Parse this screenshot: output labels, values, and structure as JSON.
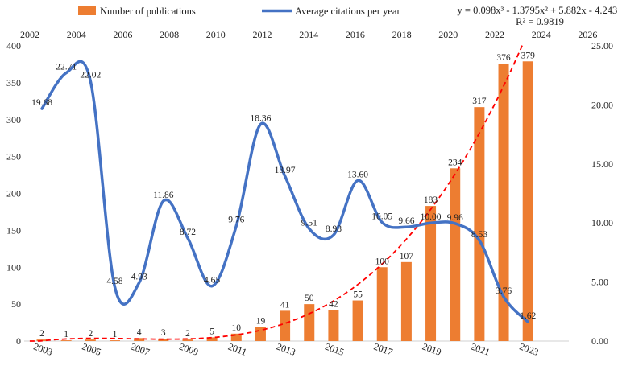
{
  "chart_data": {
    "type": "bar+line",
    "title": "",
    "colors": {
      "bar": "#ED7D31",
      "line": "#4472C4",
      "trend": "#FF0000"
    },
    "legend": {
      "bar_label": "Number of publications",
      "line_label": "Average citations per year"
    },
    "trendline": {
      "equation": "y = 0.098x³ - 1.3795x² + 5.882x - 4.2431",
      "r_squared": "R² = 0.9819",
      "coefficients": [
        0.098,
        -1.3795,
        5.882,
        -4.2431
      ]
    },
    "categories": [
      "2003",
      "2004",
      "2005",
      "2006",
      "2007",
      "2008",
      "2009",
      "2010",
      "2011",
      "2012",
      "2013",
      "2014",
      "2015",
      "2016",
      "2017",
      "2018",
      "2019",
      "2020",
      "2021",
      "2022",
      "2023"
    ],
    "bottom_axis_labels": [
      "2003",
      "2005",
      "2007",
      "2009",
      "2011",
      "2013",
      "2015",
      "2017",
      "2019",
      "2021",
      "2023"
    ],
    "top_axis_labels": [
      "2002",
      "2004",
      "2006",
      "2008",
      "2010",
      "2012",
      "2014",
      "2016",
      "2018",
      "2020",
      "2022",
      "2024",
      "2026"
    ],
    "publications": [
      2,
      1,
      2,
      1,
      4,
      3,
      2,
      5,
      10,
      19,
      41,
      50,
      42,
      55,
      100,
      107,
      183,
      234,
      317,
      376,
      379
    ],
    "citations": [
      19.68,
      22.71,
      22.02,
      4.58,
      4.93,
      11.86,
      8.72,
      4.65,
      9.76,
      18.36,
      13.97,
      9.51,
      8.98,
      13.6,
      10.05,
      9.66,
      10.0,
      9.96,
      8.53,
      3.76,
      1.62
    ],
    "citation_labels": [
      "19.68",
      "22.71",
      "22.02",
      "4.58",
      "4.93",
      "11.86",
      "8.72",
      "4.65",
      "9.76",
      "18.36",
      "13.97",
      "9.51",
      "8.98",
      "13.60",
      "10.05",
      "9.66",
      "10.00",
      "9.96",
      "8.53",
      "3.76",
      "1.62"
    ],
    "left_axis": {
      "ylim": [
        0,
        400
      ],
      "ticks": [
        "0",
        "50",
        "100",
        "150",
        "200",
        "250",
        "300",
        "350",
        "400"
      ]
    },
    "right_axis": {
      "ylim": [
        0,
        25
      ],
      "ticks": [
        "0.00",
        "5.00",
        "10.00",
        "15.00",
        "20.00",
        "25.00"
      ]
    }
  }
}
